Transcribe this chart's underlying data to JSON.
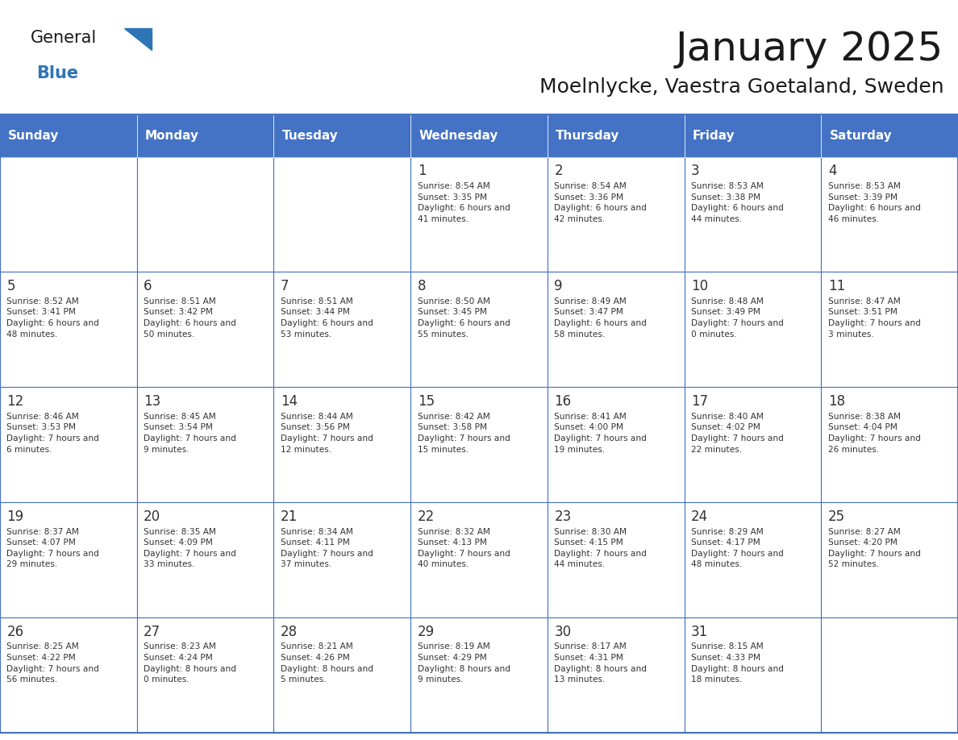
{
  "title": "January 2025",
  "subtitle": "Moelnlycke, Vaestra Goetaland, Sweden",
  "days_of_week": [
    "Sunday",
    "Monday",
    "Tuesday",
    "Wednesday",
    "Thursday",
    "Friday",
    "Saturday"
  ],
  "header_bg": "#4472C4",
  "header_text": "#FFFFFF",
  "cell_border": "#4472C4",
  "day_num_color": "#333333",
  "cell_text_color": "#333333",
  "title_color": "#1a1a1a",
  "subtitle_color": "#1a1a1a",
  "logo_general_color": "#1a1a1a",
  "logo_blue_color": "#2E75B6",
  "calendar": [
    [
      null,
      null,
      null,
      {
        "day": 1,
        "sunrise": "8:54 AM",
        "sunset": "3:35 PM",
        "daylight": "6 hours and 41 minutes."
      },
      {
        "day": 2,
        "sunrise": "8:54 AM",
        "sunset": "3:36 PM",
        "daylight": "6 hours and 42 minutes."
      },
      {
        "day": 3,
        "sunrise": "8:53 AM",
        "sunset": "3:38 PM",
        "daylight": "6 hours and 44 minutes."
      },
      {
        "day": 4,
        "sunrise": "8:53 AM",
        "sunset": "3:39 PM",
        "daylight": "6 hours and 46 minutes."
      }
    ],
    [
      {
        "day": 5,
        "sunrise": "8:52 AM",
        "sunset": "3:41 PM",
        "daylight": "6 hours and 48 minutes."
      },
      {
        "day": 6,
        "sunrise": "8:51 AM",
        "sunset": "3:42 PM",
        "daylight": "6 hours and 50 minutes."
      },
      {
        "day": 7,
        "sunrise": "8:51 AM",
        "sunset": "3:44 PM",
        "daylight": "6 hours and 53 minutes."
      },
      {
        "day": 8,
        "sunrise": "8:50 AM",
        "sunset": "3:45 PM",
        "daylight": "6 hours and 55 minutes."
      },
      {
        "day": 9,
        "sunrise": "8:49 AM",
        "sunset": "3:47 PM",
        "daylight": "6 hours and 58 minutes."
      },
      {
        "day": 10,
        "sunrise": "8:48 AM",
        "sunset": "3:49 PM",
        "daylight": "7 hours and 0 minutes."
      },
      {
        "day": 11,
        "sunrise": "8:47 AM",
        "sunset": "3:51 PM",
        "daylight": "7 hours and 3 minutes."
      }
    ],
    [
      {
        "day": 12,
        "sunrise": "8:46 AM",
        "sunset": "3:53 PM",
        "daylight": "7 hours and 6 minutes."
      },
      {
        "day": 13,
        "sunrise": "8:45 AM",
        "sunset": "3:54 PM",
        "daylight": "7 hours and 9 minutes."
      },
      {
        "day": 14,
        "sunrise": "8:44 AM",
        "sunset": "3:56 PM",
        "daylight": "7 hours and 12 minutes."
      },
      {
        "day": 15,
        "sunrise": "8:42 AM",
        "sunset": "3:58 PM",
        "daylight": "7 hours and 15 minutes."
      },
      {
        "day": 16,
        "sunrise": "8:41 AM",
        "sunset": "4:00 PM",
        "daylight": "7 hours and 19 minutes."
      },
      {
        "day": 17,
        "sunrise": "8:40 AM",
        "sunset": "4:02 PM",
        "daylight": "7 hours and 22 minutes."
      },
      {
        "day": 18,
        "sunrise": "8:38 AM",
        "sunset": "4:04 PM",
        "daylight": "7 hours and 26 minutes."
      }
    ],
    [
      {
        "day": 19,
        "sunrise": "8:37 AM",
        "sunset": "4:07 PM",
        "daylight": "7 hours and 29 minutes."
      },
      {
        "day": 20,
        "sunrise": "8:35 AM",
        "sunset": "4:09 PM",
        "daylight": "7 hours and 33 minutes."
      },
      {
        "day": 21,
        "sunrise": "8:34 AM",
        "sunset": "4:11 PM",
        "daylight": "7 hours and 37 minutes."
      },
      {
        "day": 22,
        "sunrise": "8:32 AM",
        "sunset": "4:13 PM",
        "daylight": "7 hours and 40 minutes."
      },
      {
        "day": 23,
        "sunrise": "8:30 AM",
        "sunset": "4:15 PM",
        "daylight": "7 hours and 44 minutes."
      },
      {
        "day": 24,
        "sunrise": "8:29 AM",
        "sunset": "4:17 PM",
        "daylight": "7 hours and 48 minutes."
      },
      {
        "day": 25,
        "sunrise": "8:27 AM",
        "sunset": "4:20 PM",
        "daylight": "7 hours and 52 minutes."
      }
    ],
    [
      {
        "day": 26,
        "sunrise": "8:25 AM",
        "sunset": "4:22 PM",
        "daylight": "7 hours and 56 minutes."
      },
      {
        "day": 27,
        "sunrise": "8:23 AM",
        "sunset": "4:24 PM",
        "daylight": "8 hours and 0 minutes."
      },
      {
        "day": 28,
        "sunrise": "8:21 AM",
        "sunset": "4:26 PM",
        "daylight": "8 hours and 5 minutes."
      },
      {
        "day": 29,
        "sunrise": "8:19 AM",
        "sunset": "4:29 PM",
        "daylight": "8 hours and 9 minutes."
      },
      {
        "day": 30,
        "sunrise": "8:17 AM",
        "sunset": "4:31 PM",
        "daylight": "8 hours and 13 minutes."
      },
      {
        "day": 31,
        "sunrise": "8:15 AM",
        "sunset": "4:33 PM",
        "daylight": "8 hours and 18 minutes."
      },
      null
    ]
  ]
}
